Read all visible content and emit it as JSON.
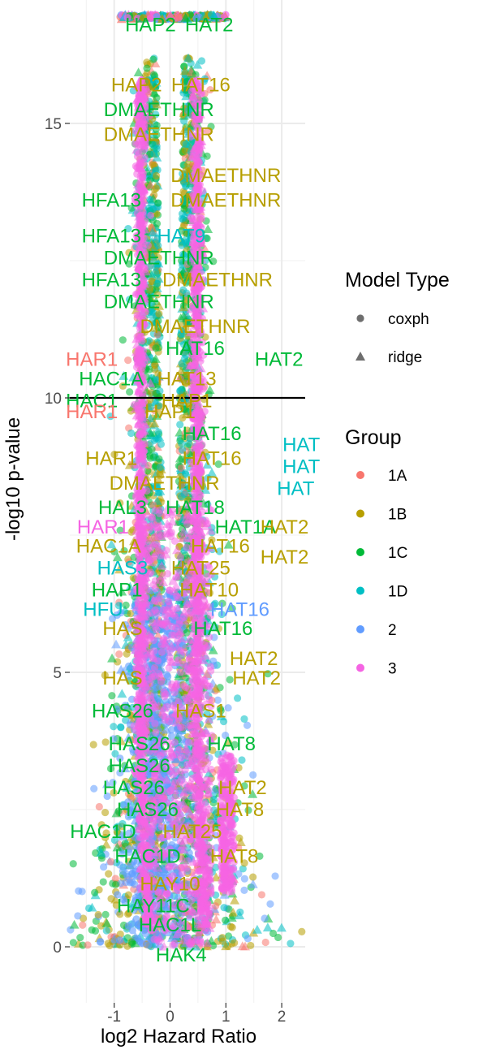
{
  "chart_data": {
    "type": "scatter",
    "title": "",
    "xlabel": "log2 Hazard Ratio",
    "ylabel": "-log10 p-value",
    "xlim": [
      -1.6,
      2.4
    ],
    "ylim": [
      -0.7,
      17
    ],
    "x_ticks": [
      -1,
      0,
      1,
      2
    ],
    "y_ticks": [
      0,
      5,
      10,
      15
    ],
    "x_tick_labels": [
      "-1",
      "0",
      "1",
      "2"
    ],
    "y_tick_labels": [
      "0",
      "5",
      "10",
      "15"
    ],
    "grid": true,
    "threshold_line": 10,
    "legend_placement": "right",
    "shape_legend": {
      "title": "Model Type",
      "entries": [
        {
          "label": "coxph",
          "shape": "circle"
        },
        {
          "label": "ridge",
          "shape": "triangle"
        }
      ]
    },
    "color_legend": {
      "title": "Group",
      "entries": [
        {
          "label": "1A",
          "color": "#F8766D"
        },
        {
          "label": "1B",
          "color": "#B79F00"
        },
        {
          "label": "1C",
          "color": "#00BA38"
        },
        {
          "label": "1D",
          "color": "#00BFC4"
        },
        {
          "label": "2",
          "color": "#619CFF"
        },
        {
          "label": "3",
          "color": "#F564E3"
        }
      ]
    },
    "labels": [
      {
        "text": "HAP2",
        "x": -0.35,
        "y": 16.8,
        "group": "1C"
      },
      {
        "text": "HAT2",
        "x": 0.7,
        "y": 16.8,
        "group": "1C"
      },
      {
        "text": "HAP2",
        "x": -0.6,
        "y": 15.7,
        "group": "1B"
      },
      {
        "text": "HAT16",
        "x": 0.55,
        "y": 15.7,
        "group": "1B"
      },
      {
        "text": "DMAETHNR",
        "x": -0.2,
        "y": 15.25,
        "group": "1C"
      },
      {
        "text": "DMAETHNR",
        "x": -0.2,
        "y": 14.8,
        "group": "1B"
      },
      {
        "text": "DMAETHNR",
        "x": 1.0,
        "y": 14.05,
        "group": "1B"
      },
      {
        "text": "HFA13",
        "x": -1.05,
        "y": 13.6,
        "group": "1C"
      },
      {
        "text": "DMAETHNR",
        "x": 1.0,
        "y": 13.6,
        "group": "1B"
      },
      {
        "text": "HFA13",
        "x": -1.05,
        "y": 12.95,
        "group": "1C"
      },
      {
        "text": "HAT9",
        "x": 0.2,
        "y": 12.95,
        "group": "1D"
      },
      {
        "text": "DMAETHNR",
        "x": -0.2,
        "y": 12.55,
        "group": "1C"
      },
      {
        "text": "HFA13",
        "x": -1.05,
        "y": 12.15,
        "group": "1C"
      },
      {
        "text": "DMAETHNR",
        "x": 0.85,
        "y": 12.15,
        "group": "1B"
      },
      {
        "text": "DMAETHNR",
        "x": -0.2,
        "y": 11.75,
        "group": "1C"
      },
      {
        "text": "DMAETHNR",
        "x": 0.45,
        "y": 11.3,
        "group": "1B"
      },
      {
        "text": "HAT16",
        "x": 0.45,
        "y": 10.9,
        "group": "1C"
      },
      {
        "text": "HAT2",
        "x": 1.95,
        "y": 10.7,
        "group": "1C"
      },
      {
        "text": "HAR1",
        "x": -1.4,
        "y": 10.7,
        "group": "1A"
      },
      {
        "text": "HAC1A",
        "x": -1.05,
        "y": 10.35,
        "group": "1C"
      },
      {
        "text": "HAT13",
        "x": 0.3,
        "y": 10.35,
        "group": "1B"
      },
      {
        "text": "HAC1",
        "x": -1.4,
        "y": 9.95,
        "group": "1C"
      },
      {
        "text": "HAP1",
        "x": 0.3,
        "y": 9.95,
        "group": "1B"
      },
      {
        "text": "HAR1",
        "x": -1.4,
        "y": 9.75,
        "group": "1A"
      },
      {
        "text": "HAP1",
        "x": 0.0,
        "y": 9.75,
        "group": "1B"
      },
      {
        "text": "HAT16",
        "x": 0.75,
        "y": 9.35,
        "group": "1C"
      },
      {
        "text": "HAR1",
        "x": -1.05,
        "y": 8.9,
        "group": "1B"
      },
      {
        "text": "HAT16",
        "x": 0.75,
        "y": 8.9,
        "group": "1B"
      },
      {
        "text": "HAT",
        "x": 2.35,
        "y": 9.15,
        "group": "1D"
      },
      {
        "text": "HAT",
        "x": 2.35,
        "y": 8.75,
        "group": "1D"
      },
      {
        "text": "DMAETHNR",
        "x": -0.1,
        "y": 8.45,
        "group": "1B"
      },
      {
        "text": "HAT",
        "x": 2.25,
        "y": 8.35,
        "group": "1D"
      },
      {
        "text": "HAL3",
        "x": -0.85,
        "y": 8.0,
        "group": "1C"
      },
      {
        "text": "HAT18",
        "x": 0.45,
        "y": 8.0,
        "group": "1C"
      },
      {
        "text": "HAR1",
        "x": -1.2,
        "y": 7.65,
        "group": "3"
      },
      {
        "text": "HAT1A",
        "x": 1.35,
        "y": 7.65,
        "group": "1C"
      },
      {
        "text": "HAT2",
        "x": 2.05,
        "y": 7.65,
        "group": "1B"
      },
      {
        "text": "HAC1A",
        "x": -1.1,
        "y": 7.3,
        "group": "1B"
      },
      {
        "text": "HAT16",
        "x": 0.9,
        "y": 7.3,
        "group": "1B"
      },
      {
        "text": "HAS3",
        "x": -0.85,
        "y": 6.9,
        "group": "1D"
      },
      {
        "text": "HAT25",
        "x": 0.55,
        "y": 6.9,
        "group": "1B"
      },
      {
        "text": "HAT2",
        "x": 2.05,
        "y": 7.1,
        "group": "1B"
      },
      {
        "text": "HAP1",
        "x": -0.95,
        "y": 6.5,
        "group": "1C"
      },
      {
        "text": "HAT10",
        "x": 0.7,
        "y": 6.5,
        "group": "1B"
      },
      {
        "text": "HFU",
        "x": -1.2,
        "y": 6.15,
        "group": "1D"
      },
      {
        "text": "HAT16",
        "x": 1.25,
        "y": 6.15,
        "group": "2"
      },
      {
        "text": "HAS",
        "x": -0.85,
        "y": 5.8,
        "group": "1B"
      },
      {
        "text": "HAT16",
        "x": 0.95,
        "y": 5.8,
        "group": "1C"
      },
      {
        "text": "HAT2",
        "x": 1.5,
        "y": 5.25,
        "group": "1B"
      },
      {
        "text": "HAS",
        "x": -0.85,
        "y": 4.9,
        "group": "1B"
      },
      {
        "text": "HAT2",
        "x": 1.55,
        "y": 4.9,
        "group": "1B"
      },
      {
        "text": "HAS26",
        "x": -0.85,
        "y": 4.3,
        "group": "1C"
      },
      {
        "text": "HAS1",
        "x": 0.55,
        "y": 4.3,
        "group": "1B"
      },
      {
        "text": "HAS26",
        "x": -0.55,
        "y": 3.7,
        "group": "1C"
      },
      {
        "text": "HAT8",
        "x": 1.1,
        "y": 3.7,
        "group": "1C"
      },
      {
        "text": "HAS26",
        "x": -0.55,
        "y": 3.3,
        "group": "1C"
      },
      {
        "text": "HAS26",
        "x": -0.65,
        "y": 2.9,
        "group": "1C"
      },
      {
        "text": "HAT2",
        "x": 1.3,
        "y": 2.9,
        "group": "1B"
      },
      {
        "text": "HAS26",
        "x": -0.4,
        "y": 2.5,
        "group": "1C"
      },
      {
        "text": "HAT8",
        "x": 1.25,
        "y": 2.5,
        "group": "1B"
      },
      {
        "text": "HAC1D",
        "x": -1.2,
        "y": 2.1,
        "group": "1C"
      },
      {
        "text": "HAT25",
        "x": 0.4,
        "y": 2.1,
        "group": "1B"
      },
      {
        "text": "HAC1D",
        "x": -0.4,
        "y": 1.65,
        "group": "1C"
      },
      {
        "text": "HAT8",
        "x": 1.15,
        "y": 1.65,
        "group": "1B"
      },
      {
        "text": "HAY10",
        "x": 0.0,
        "y": 1.15,
        "group": "1B"
      },
      {
        "text": "HAY11C",
        "x": -0.3,
        "y": 0.75,
        "group": "1C"
      },
      {
        "text": "HAC1L",
        "x": 0.0,
        "y": 0.4,
        "group": "1C"
      },
      {
        "text": "HAK4",
        "x": 0.2,
        "y": -0.15,
        "group": "1C"
      }
    ]
  }
}
